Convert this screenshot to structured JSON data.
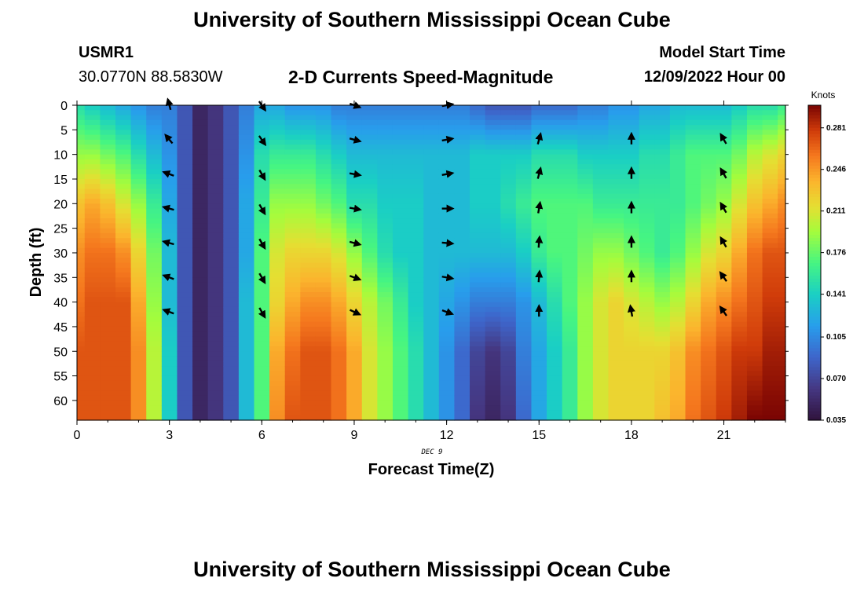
{
  "page": {
    "title": "University of Southern Mississippi Ocean Cube",
    "footer_title": "University of Southern Mississippi Ocean Cube",
    "station_name": "USMR1",
    "station_coords": "30.0770N  88.5830W",
    "subtitle": "2-D Currents Speed-Magnitude",
    "model_start_label": "Model Start Time",
    "model_start_value": "12/09/2022 Hour 00"
  },
  "chart_data": {
    "type": "heatmap",
    "title": "2-D Currents Speed-Magnitude",
    "xlabel": "Forecast Time(Z)",
    "ylabel": "Depth (ft)",
    "x_date_label": "DEC 9",
    "xlim": [
      0,
      23
    ],
    "ylim": [
      0,
      64
    ],
    "x_ticks": [
      0,
      3,
      6,
      9,
      12,
      15,
      18,
      21
    ],
    "y_ticks": [
      0,
      5,
      10,
      15,
      20,
      25,
      30,
      35,
      40,
      45,
      50,
      55,
      60
    ],
    "colorbar": {
      "unit": "Knots",
      "min": 0.035,
      "max": 0.3,
      "ticks": [
        "0.035",
        "0.070",
        "0.105",
        "0.141",
        "0.176",
        "0.211",
        "0.246",
        "0.281"
      ]
    },
    "speed_profiles": {
      "depths": [
        0,
        10,
        20,
        30,
        40,
        50,
        64
      ],
      "times": [
        0,
        0.5,
        1,
        1.5,
        2,
        2.5,
        3,
        3.5,
        4,
        4.5,
        5,
        5.5,
        6,
        6.5,
        7,
        7.5,
        8,
        8.5,
        9,
        9.5,
        10,
        10.5,
        11,
        11.5,
        12,
        12.5,
        13,
        13.5,
        14,
        14.5,
        15,
        15.5,
        16,
        16.5,
        17,
        17.5,
        18,
        18.5,
        19,
        19.5,
        20,
        20.5,
        21,
        21.5,
        22,
        22.5,
        23
      ],
      "values": [
        [
          0.15,
          0.19,
          0.23,
          0.25,
          0.26,
          0.27,
          0.27
        ],
        [
          0.14,
          0.19,
          0.24,
          0.26,
          0.27,
          0.27,
          0.27
        ],
        [
          0.13,
          0.18,
          0.23,
          0.26,
          0.27,
          0.27,
          0.27
        ],
        [
          0.12,
          0.17,
          0.21,
          0.25,
          0.27,
          0.27,
          0.27
        ],
        [
          0.11,
          0.15,
          0.19,
          0.22,
          0.24,
          0.25,
          0.25
        ],
        [
          0.1,
          0.13,
          0.16,
          0.18,
          0.19,
          0.2,
          0.2
        ],
        [
          0.1,
          0.11,
          0.12,
          0.13,
          0.13,
          0.14,
          0.14
        ],
        [
          0.08,
          0.08,
          0.08,
          0.08,
          0.08,
          0.08,
          0.08
        ],
        [
          0.05,
          0.05,
          0.05,
          0.05,
          0.05,
          0.05,
          0.05
        ],
        [
          0.06,
          0.06,
          0.06,
          0.06,
          0.06,
          0.06,
          0.06
        ],
        [
          0.08,
          0.08,
          0.08,
          0.08,
          0.08,
          0.08,
          0.08
        ],
        [
          0.1,
          0.11,
          0.12,
          0.12,
          0.13,
          0.13,
          0.13
        ],
        [
          0.12,
          0.15,
          0.16,
          0.17,
          0.17,
          0.17,
          0.17
        ],
        [
          0.12,
          0.16,
          0.19,
          0.21,
          0.22,
          0.24,
          0.25
        ],
        [
          0.11,
          0.16,
          0.19,
          0.22,
          0.24,
          0.26,
          0.27
        ],
        [
          0.11,
          0.16,
          0.19,
          0.22,
          0.25,
          0.27,
          0.27
        ],
        [
          0.11,
          0.15,
          0.18,
          0.22,
          0.25,
          0.27,
          0.27
        ],
        [
          0.1,
          0.14,
          0.17,
          0.21,
          0.24,
          0.26,
          0.26
        ],
        [
          0.1,
          0.13,
          0.15,
          0.19,
          0.22,
          0.24,
          0.24
        ],
        [
          0.1,
          0.13,
          0.15,
          0.17,
          0.2,
          0.21,
          0.21
        ],
        [
          0.1,
          0.13,
          0.14,
          0.15,
          0.18,
          0.19,
          0.19
        ],
        [
          0.1,
          0.13,
          0.14,
          0.14,
          0.16,
          0.17,
          0.17
        ],
        [
          0.1,
          0.13,
          0.14,
          0.14,
          0.14,
          0.15,
          0.15
        ],
        [
          0.1,
          0.13,
          0.13,
          0.13,
          0.13,
          0.13,
          0.13
        ],
        [
          0.1,
          0.13,
          0.13,
          0.13,
          0.12,
          0.11,
          0.11
        ],
        [
          0.1,
          0.13,
          0.13,
          0.13,
          0.11,
          0.09,
          0.09
        ],
        [
          0.09,
          0.14,
          0.14,
          0.13,
          0.1,
          0.07,
          0.06
        ],
        [
          0.08,
          0.14,
          0.14,
          0.13,
          0.1,
          0.06,
          0.05
        ],
        [
          0.08,
          0.14,
          0.15,
          0.13,
          0.1,
          0.07,
          0.06
        ],
        [
          0.08,
          0.14,
          0.16,
          0.14,
          0.11,
          0.1,
          0.09
        ],
        [
          0.09,
          0.15,
          0.17,
          0.16,
          0.13,
          0.12,
          0.12
        ],
        [
          0.09,
          0.15,
          0.17,
          0.17,
          0.15,
          0.14,
          0.14
        ],
        [
          0.09,
          0.15,
          0.17,
          0.17,
          0.17,
          0.16,
          0.16
        ],
        [
          0.1,
          0.14,
          0.17,
          0.18,
          0.19,
          0.19,
          0.19
        ],
        [
          0.1,
          0.14,
          0.16,
          0.19,
          0.21,
          0.21,
          0.21
        ],
        [
          0.11,
          0.14,
          0.16,
          0.19,
          0.22,
          0.22,
          0.22
        ],
        [
          0.11,
          0.14,
          0.16,
          0.18,
          0.21,
          0.22,
          0.22
        ],
        [
          0.12,
          0.15,
          0.16,
          0.17,
          0.2,
          0.22,
          0.22
        ],
        [
          0.12,
          0.15,
          0.16,
          0.16,
          0.19,
          0.22,
          0.23
        ],
        [
          0.13,
          0.16,
          0.16,
          0.17,
          0.2,
          0.23,
          0.24
        ],
        [
          0.13,
          0.17,
          0.17,
          0.19,
          0.22,
          0.25,
          0.26
        ],
        [
          0.13,
          0.17,
          0.18,
          0.21,
          0.24,
          0.26,
          0.27
        ],
        [
          0.13,
          0.17,
          0.19,
          0.22,
          0.25,
          0.27,
          0.28
        ],
        [
          0.14,
          0.18,
          0.21,
          0.24,
          0.26,
          0.28,
          0.29
        ],
        [
          0.15,
          0.2,
          0.23,
          0.26,
          0.27,
          0.28,
          0.3
        ],
        [
          0.15,
          0.21,
          0.24,
          0.27,
          0.28,
          0.29,
          0.3
        ],
        [
          0.16,
          0.22,
          0.25,
          0.27,
          0.28,
          0.29,
          0.3
        ]
      ]
    },
    "vectors": {
      "times": [
        3,
        6,
        9,
        12,
        15,
        18,
        21
      ],
      "depths": [
        0,
        7,
        14,
        21,
        28,
        35,
        42
      ],
      "directions_deg": [
        [
          -15,
          -40,
          -70,
          -75,
          -75,
          -70,
          -70
        ],
        [
          145,
          145,
          150,
          150,
          150,
          150,
          150
        ],
        [
          110,
          105,
          100,
          100,
          105,
          110,
          115
        ],
        [
          80,
          80,
          80,
          90,
          95,
          100,
          110
        ],
        [
          null,
          15,
          15,
          10,
          5,
          5,
          0
        ],
        [
          null,
          0,
          0,
          0,
          0,
          0,
          -10
        ],
        [
          null,
          -30,
          -30,
          -30,
          -30,
          -35,
          -35
        ]
      ]
    }
  }
}
